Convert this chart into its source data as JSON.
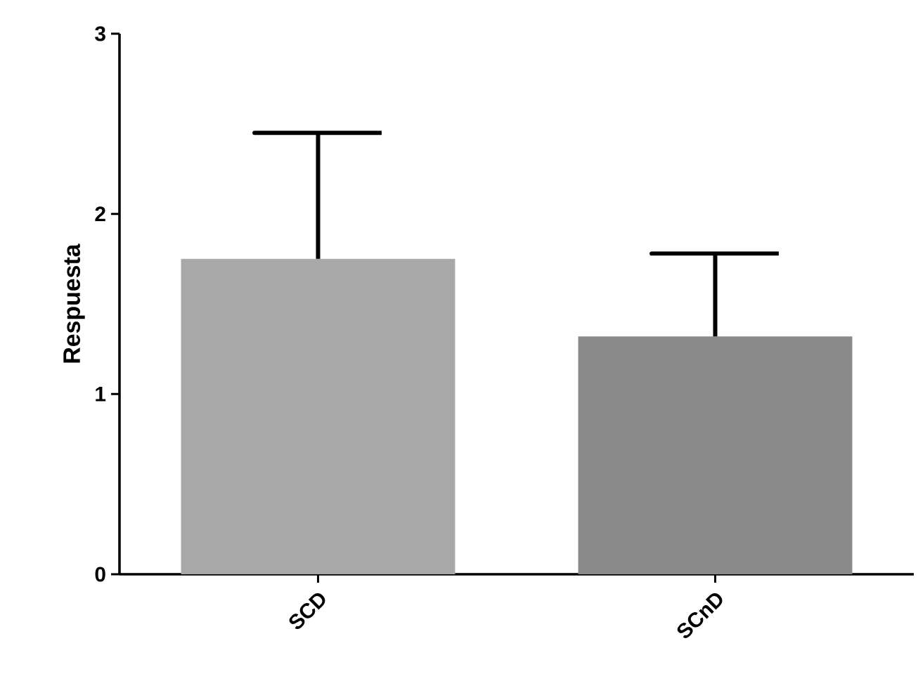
{
  "chart_data": {
    "type": "bar",
    "ylabel": "Respuesta",
    "categories": [
      "SCD",
      "SCnD"
    ],
    "values": [
      1.75,
      1.32
    ],
    "colors": [
      "#a8a8a8",
      "#8a8a8a"
    ],
    "errors": [
      [
        1.75,
        2.45
      ],
      [
        1.32,
        1.78
      ]
    ],
    "ylim": [
      0,
      3
    ],
    "yticks": [
      0,
      1,
      2,
      3
    ],
    "grid": false
  }
}
